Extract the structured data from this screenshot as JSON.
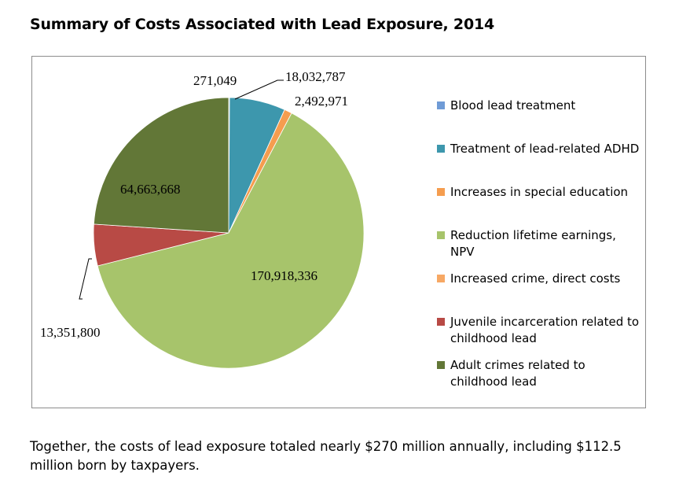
{
  "page": {
    "title": "Summary of Costs Associated with Lead Exposure, 2014",
    "caption": "Together, the costs of lead exposure totaled nearly $270 million annually, including $112.5 million born by taxpayers."
  },
  "chart_data": {
    "type": "pie",
    "legend_position": "right",
    "slices": [
      {
        "name": "Blood lead treatment",
        "value": 271049,
        "label": "271,049",
        "color": "#6f9bd6"
      },
      {
        "name": "Treatment of lead-related ADHD",
        "value": 18032787,
        "label": "18,032,787",
        "color": "#3d97ad"
      },
      {
        "name": "Increases in special education",
        "value": 2492971,
        "label": "2,492,971",
        "color": "#f59d4f"
      },
      {
        "name": "Reduction lifetime earnings, NPV",
        "value": 170918336,
        "label": "170,918,336",
        "color": "#a7c46b"
      },
      {
        "name": "Increased crime, direct costs",
        "value": 0,
        "label": "",
        "color": "#f7a864"
      },
      {
        "name": "Juvenile incarceration related to childhood lead",
        "value": 13351800,
        "label": "13,351,800",
        "color": "#b84a45"
      },
      {
        "name": "Adult crimes related to childhood lead",
        "value": 64663668,
        "label": "64,663,668",
        "color": "#627737"
      }
    ],
    "legend_lines": [
      [
        "Blood lead treatment"
      ],
      [
        "Treatment of lead-related",
        "ADHD"
      ],
      [
        "Increases in special education"
      ],
      [
        "Reduction lifetime earnings,",
        "NPV"
      ],
      [
        "Increased crime, direct costs"
      ],
      [
        "Juvenile incarceration related",
        "to childhood lead"
      ],
      [
        "Adult crimes related to",
        "childhood lead"
      ]
    ]
  }
}
